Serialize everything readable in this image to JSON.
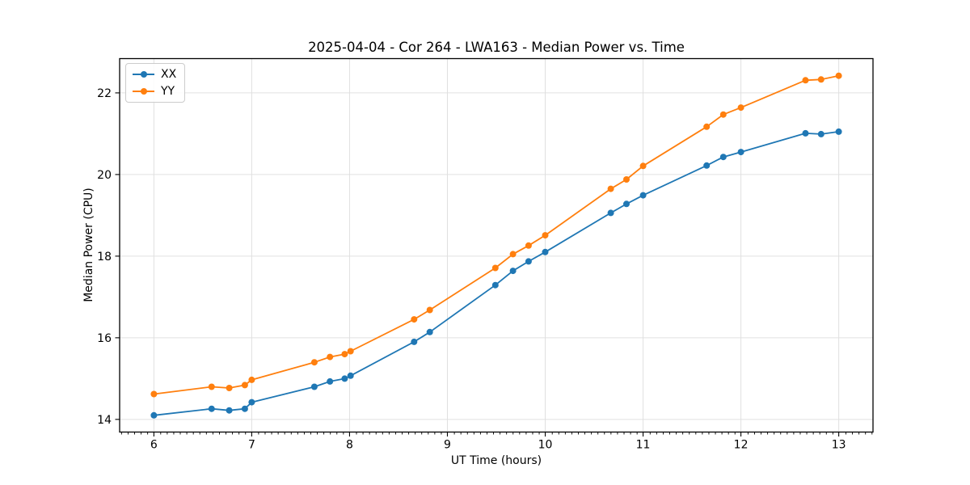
{
  "chart_data": {
    "type": "line",
    "title": "2025-04-04 - Cor 264 - LWA163 - Median Power vs. Time",
    "xlabel": "UT Time (hours)",
    "ylabel": "Median Power (CPU)",
    "x": [
      6.0,
      6.59,
      6.77,
      6.93,
      7.0,
      7.64,
      7.8,
      7.95,
      8.01,
      8.66,
      8.82,
      9.49,
      9.67,
      9.83,
      10.0,
      10.67,
      10.83,
      11.0,
      11.65,
      11.82,
      12.0,
      12.66,
      12.82,
      13.0
    ],
    "series": [
      {
        "name": "XX",
        "color": "#1f77b4",
        "values": [
          14.1,
          14.26,
          14.22,
          14.26,
          14.42,
          14.8,
          14.93,
          15.0,
          15.07,
          15.9,
          16.14,
          17.29,
          17.64,
          17.87,
          18.1,
          19.06,
          19.28,
          19.49,
          20.22,
          20.43,
          20.55,
          21.01,
          20.99,
          21.05
        ]
      },
      {
        "name": "YY",
        "color": "#ff7f0e",
        "values": [
          14.62,
          14.8,
          14.77,
          14.84,
          14.97,
          15.4,
          15.53,
          15.6,
          15.67,
          16.45,
          16.68,
          17.71,
          18.05,
          18.26,
          18.51,
          19.65,
          19.88,
          20.21,
          21.17,
          21.47,
          21.64,
          22.31,
          22.33,
          22.42
        ]
      }
    ],
    "xlim": [
      5.65,
      13.35
    ],
    "ylim": [
      13.69,
      22.84
    ],
    "xticks": [
      6,
      7,
      8,
      9,
      10,
      11,
      12,
      13
    ],
    "yticks": [
      14,
      16,
      18,
      20,
      22
    ],
    "minor_xtick_step": 0.0667,
    "grid": true,
    "grid_color": "#e0e0e0",
    "axis_color": "#000000",
    "legend_position": "upper-left",
    "marker": "o"
  }
}
